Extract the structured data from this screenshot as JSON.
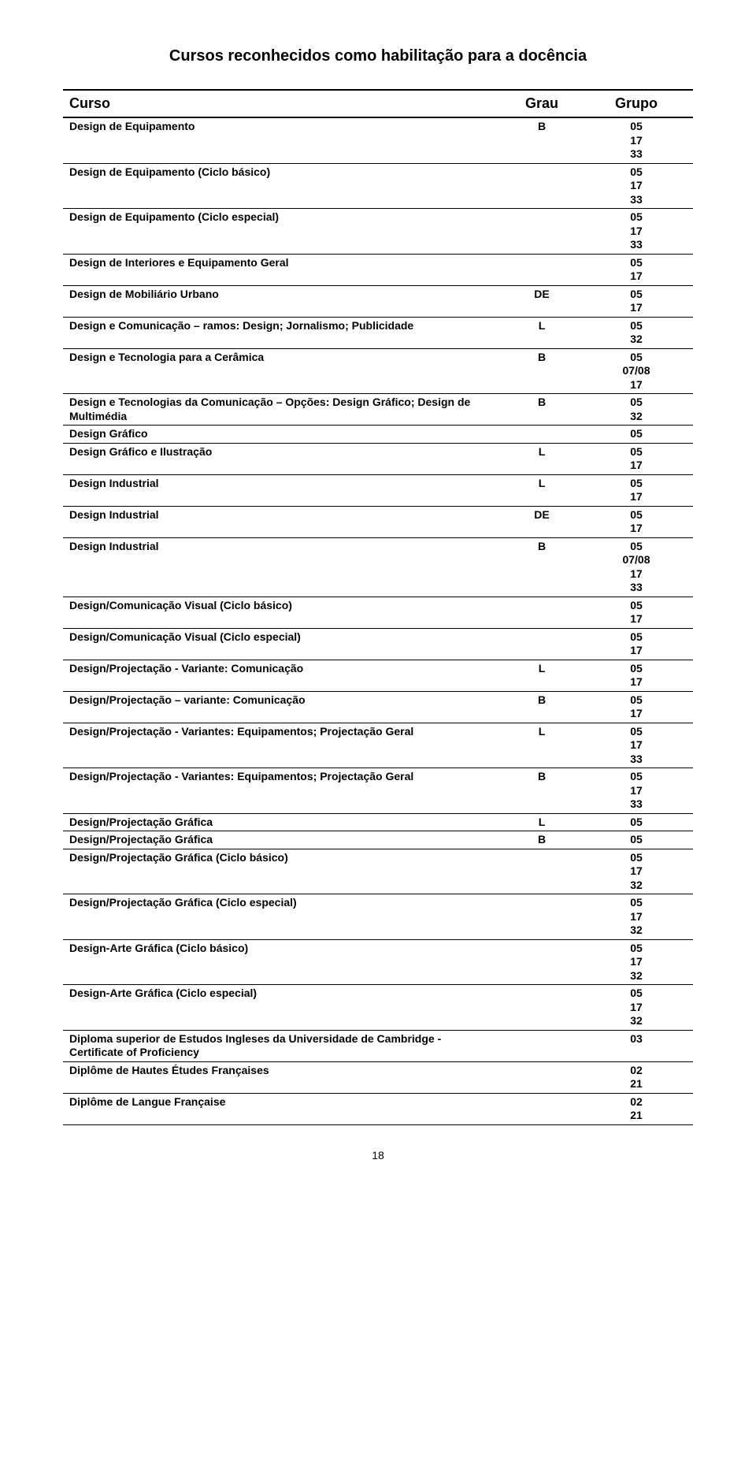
{
  "page_title": "Cursos reconhecidos como habilitação para a docência",
  "page_number": "18",
  "columns": {
    "curso": "Curso",
    "grau": "Grau",
    "grupo": "Grupo"
  },
  "rows": [
    {
      "curso": "Design de Equipamento",
      "grau": "B",
      "grupo": "05\n17\n33"
    },
    {
      "curso": "Design de Equipamento (Ciclo básico)",
      "grau": "",
      "grupo": "05\n17\n33"
    },
    {
      "curso": "Design de Equipamento (Ciclo especial)",
      "grau": "",
      "grupo": "05\n17\n33"
    },
    {
      "curso": "Design de Interiores e Equipamento Geral",
      "grau": "",
      "grupo": "05\n17"
    },
    {
      "curso": "Design de Mobiliário Urbano",
      "grau": "DE",
      "grupo": "05\n17"
    },
    {
      "curso": "Design e Comunicação – ramos: Design; Jornalismo; Publicidade",
      "grau": "L",
      "grupo": "05\n32"
    },
    {
      "curso": "Design e Tecnologia para a Cerâmica",
      "grau": "B",
      "grupo": "05\n07/08\n17"
    },
    {
      "curso": "Design e Tecnologias da Comunicação – Opções: Design Gráfico; Design de Multimédia",
      "grau": "B",
      "grupo": "05\n32"
    },
    {
      "curso": "Design Gráfico",
      "grau": "",
      "grupo": "05"
    },
    {
      "curso": "Design Gráfico e Ilustração",
      "grau": "L",
      "grupo": "05\n17"
    },
    {
      "curso": "Design Industrial",
      "grau": "L",
      "grupo": "05\n17"
    },
    {
      "curso": "Design Industrial",
      "grau": "DE",
      "grupo": "05\n17"
    },
    {
      "curso": "Design Industrial",
      "grau": "B",
      "grupo": "05\n07/08\n17\n33"
    },
    {
      "curso": "Design/Comunicação Visual (Ciclo básico)",
      "grau": "",
      "grupo": "05\n17"
    },
    {
      "curso": "Design/Comunicação Visual (Ciclo especial)",
      "grau": "",
      "grupo": "05\n17"
    },
    {
      "curso": "Design/Projectação - Variante: Comunicação",
      "grau": "L",
      "grupo": "05\n17"
    },
    {
      "curso": "Design/Projectação – variante: Comunicação",
      "grau": "B",
      "grupo": "05\n17"
    },
    {
      "curso": "Design/Projectação - Variantes: Equipamentos; Projectação Geral",
      "grau": "L",
      "grupo": "05\n17\n33"
    },
    {
      "curso": "Design/Projectação - Variantes: Equipamentos; Projectação Geral",
      "grau": "B",
      "grupo": "05\n17\n33"
    },
    {
      "curso": "Design/Projectação Gráfica",
      "grau": "L",
      "grupo": "05"
    },
    {
      "curso": "Design/Projectação Gráfica",
      "grau": "B",
      "grupo": "05"
    },
    {
      "curso": "Design/Projectação Gráfica (Ciclo básico)",
      "grau": "",
      "grupo": "05\n17\n32"
    },
    {
      "curso": "Design/Projectação Gráfica (Ciclo especial)",
      "grau": "",
      "grupo": "05\n17\n32"
    },
    {
      "curso": "Design-Arte Gráfica (Ciclo básico)",
      "grau": "",
      "grupo": "05\n17\n32"
    },
    {
      "curso": "Design-Arte Gráfica (Ciclo especial)",
      "grau": "",
      "grupo": "05\n17\n32"
    },
    {
      "curso": "Diploma superior de Estudos Ingleses da Universidade de Cambridge - Certificate of Proficiency",
      "grau": "",
      "grupo": "03"
    },
    {
      "curso": "Diplôme de Hautes Études Françaises",
      "grau": "",
      "grupo": "02\n21"
    },
    {
      "curso": "Diplôme de Langue Française",
      "grau": "",
      "grupo": "02\n21"
    }
  ]
}
